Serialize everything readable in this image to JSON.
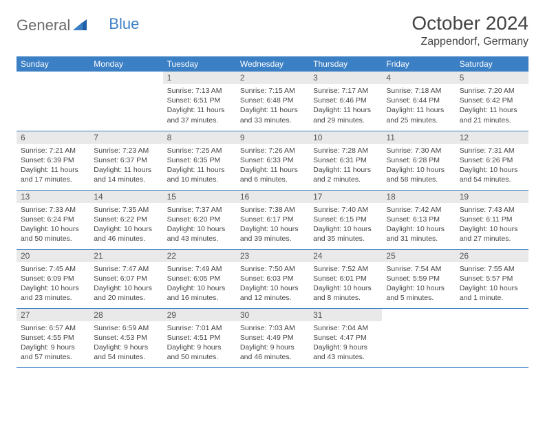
{
  "logo": {
    "text1": "General",
    "text2": "Blue"
  },
  "title": "October 2024",
  "location": "Zappendorf, Germany",
  "colors": {
    "header_bg": "#3b7fc4",
    "header_text": "#ffffff",
    "daynum_bg": "#e9e9e9",
    "border": "#3b7fc4",
    "text": "#444444",
    "logo_gray": "#6b6b6b",
    "logo_blue": "#3b7fc4",
    "background": "#ffffff"
  },
  "weekdays": [
    "Sunday",
    "Monday",
    "Tuesday",
    "Wednesday",
    "Thursday",
    "Friday",
    "Saturday"
  ],
  "weeks": [
    [
      null,
      null,
      {
        "n": "1",
        "sr": "7:13 AM",
        "ss": "6:51 PM",
        "dl": "11 hours and 37 minutes."
      },
      {
        "n": "2",
        "sr": "7:15 AM",
        "ss": "6:48 PM",
        "dl": "11 hours and 33 minutes."
      },
      {
        "n": "3",
        "sr": "7:17 AM",
        "ss": "6:46 PM",
        "dl": "11 hours and 29 minutes."
      },
      {
        "n": "4",
        "sr": "7:18 AM",
        "ss": "6:44 PM",
        "dl": "11 hours and 25 minutes."
      },
      {
        "n": "5",
        "sr": "7:20 AM",
        "ss": "6:42 PM",
        "dl": "11 hours and 21 minutes."
      }
    ],
    [
      {
        "n": "6",
        "sr": "7:21 AM",
        "ss": "6:39 PM",
        "dl": "11 hours and 17 minutes."
      },
      {
        "n": "7",
        "sr": "7:23 AM",
        "ss": "6:37 PM",
        "dl": "11 hours and 14 minutes."
      },
      {
        "n": "8",
        "sr": "7:25 AM",
        "ss": "6:35 PM",
        "dl": "11 hours and 10 minutes."
      },
      {
        "n": "9",
        "sr": "7:26 AM",
        "ss": "6:33 PM",
        "dl": "11 hours and 6 minutes."
      },
      {
        "n": "10",
        "sr": "7:28 AM",
        "ss": "6:31 PM",
        "dl": "11 hours and 2 minutes."
      },
      {
        "n": "11",
        "sr": "7:30 AM",
        "ss": "6:28 PM",
        "dl": "10 hours and 58 minutes."
      },
      {
        "n": "12",
        "sr": "7:31 AM",
        "ss": "6:26 PM",
        "dl": "10 hours and 54 minutes."
      }
    ],
    [
      {
        "n": "13",
        "sr": "7:33 AM",
        "ss": "6:24 PM",
        "dl": "10 hours and 50 minutes."
      },
      {
        "n": "14",
        "sr": "7:35 AM",
        "ss": "6:22 PM",
        "dl": "10 hours and 46 minutes."
      },
      {
        "n": "15",
        "sr": "7:37 AM",
        "ss": "6:20 PM",
        "dl": "10 hours and 43 minutes."
      },
      {
        "n": "16",
        "sr": "7:38 AM",
        "ss": "6:17 PM",
        "dl": "10 hours and 39 minutes."
      },
      {
        "n": "17",
        "sr": "7:40 AM",
        "ss": "6:15 PM",
        "dl": "10 hours and 35 minutes."
      },
      {
        "n": "18",
        "sr": "7:42 AM",
        "ss": "6:13 PM",
        "dl": "10 hours and 31 minutes."
      },
      {
        "n": "19",
        "sr": "7:43 AM",
        "ss": "6:11 PM",
        "dl": "10 hours and 27 minutes."
      }
    ],
    [
      {
        "n": "20",
        "sr": "7:45 AM",
        "ss": "6:09 PM",
        "dl": "10 hours and 23 minutes."
      },
      {
        "n": "21",
        "sr": "7:47 AM",
        "ss": "6:07 PM",
        "dl": "10 hours and 20 minutes."
      },
      {
        "n": "22",
        "sr": "7:49 AM",
        "ss": "6:05 PM",
        "dl": "10 hours and 16 minutes."
      },
      {
        "n": "23",
        "sr": "7:50 AM",
        "ss": "6:03 PM",
        "dl": "10 hours and 12 minutes."
      },
      {
        "n": "24",
        "sr": "7:52 AM",
        "ss": "6:01 PM",
        "dl": "10 hours and 8 minutes."
      },
      {
        "n": "25",
        "sr": "7:54 AM",
        "ss": "5:59 PM",
        "dl": "10 hours and 5 minutes."
      },
      {
        "n": "26",
        "sr": "7:55 AM",
        "ss": "5:57 PM",
        "dl": "10 hours and 1 minute."
      }
    ],
    [
      {
        "n": "27",
        "sr": "6:57 AM",
        "ss": "4:55 PM",
        "dl": "9 hours and 57 minutes."
      },
      {
        "n": "28",
        "sr": "6:59 AM",
        "ss": "4:53 PM",
        "dl": "9 hours and 54 minutes."
      },
      {
        "n": "29",
        "sr": "7:01 AM",
        "ss": "4:51 PM",
        "dl": "9 hours and 50 minutes."
      },
      {
        "n": "30",
        "sr": "7:03 AM",
        "ss": "4:49 PM",
        "dl": "9 hours and 46 minutes."
      },
      {
        "n": "31",
        "sr": "7:04 AM",
        "ss": "4:47 PM",
        "dl": "9 hours and 43 minutes."
      },
      null,
      null
    ]
  ],
  "labels": {
    "sunrise": "Sunrise:",
    "sunset": "Sunset:",
    "daylight": "Daylight:"
  }
}
